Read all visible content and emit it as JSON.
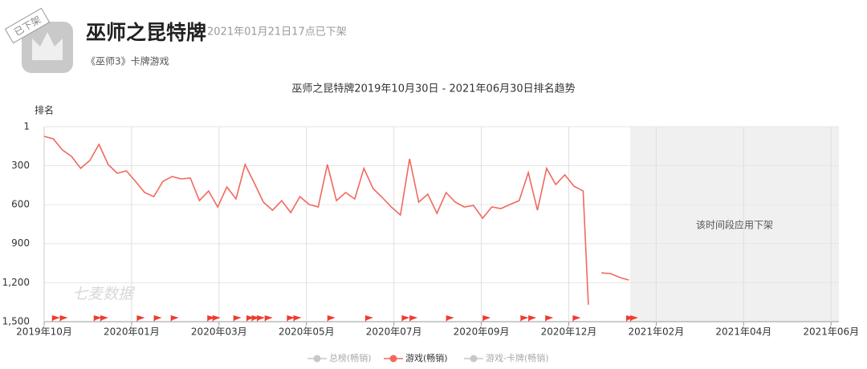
{
  "header": {
    "badge": "已下架",
    "title": "巫师之昆特牌",
    "status": "2021年01月21日17点已下架",
    "subtitle": "《巫师3》卡牌游戏"
  },
  "chart_data": {
    "type": "line",
    "title": "巫师之昆特牌2019年10月30日 - 2021年06月30日排名趋势",
    "y_label": "排名",
    "watermark": "七麦数据",
    "x": [
      "2019-10-30",
      "2019-11-06",
      "2019-11-13",
      "2019-11-20",
      "2019-11-27",
      "2019-12-04",
      "2019-12-11",
      "2019-12-18",
      "2019-12-25",
      "2020-01-01",
      "2020-01-08",
      "2020-01-15",
      "2020-01-22",
      "2020-01-29",
      "2020-02-05",
      "2020-02-12",
      "2020-02-19",
      "2020-02-26",
      "2020-03-04",
      "2020-03-11",
      "2020-03-18",
      "2020-03-25",
      "2020-04-01",
      "2020-04-08",
      "2020-04-15",
      "2020-04-22",
      "2020-04-29",
      "2020-05-06",
      "2020-05-13",
      "2020-05-20",
      "2020-05-27",
      "2020-06-03",
      "2020-06-10",
      "2020-06-17",
      "2020-06-24",
      "2020-07-01",
      "2020-07-08",
      "2020-07-15",
      "2020-07-22",
      "2020-07-29",
      "2020-08-05",
      "2020-08-12",
      "2020-08-19",
      "2020-08-26",
      "2020-09-02",
      "2020-09-09",
      "2020-09-16",
      "2020-09-23",
      "2020-09-30",
      "2020-10-07",
      "2020-10-14",
      "2020-10-21",
      "2020-10-28",
      "2020-11-04",
      "2020-11-11",
      "2020-11-18",
      "2020-11-25",
      "2020-12-02",
      "2020-12-09",
      "2020-12-16",
      "2020-12-20",
      "2020-12-25",
      "2020-12-30",
      "2021-01-06",
      "2021-01-13",
      "2021-01-20"
    ],
    "series": [
      {
        "name": "总榜(畅销)",
        "color": "#c8c8c8",
        "visible": false,
        "values": [
          null,
          null,
          null,
          null,
          null,
          null,
          null,
          null,
          null,
          null,
          null,
          null,
          null,
          null,
          null,
          null,
          null,
          null,
          null,
          null,
          null,
          null,
          null,
          null,
          null,
          null,
          null,
          null,
          null,
          null,
          null,
          null,
          null,
          null,
          null,
          null,
          null,
          null,
          null,
          null,
          null,
          null,
          null,
          null,
          null,
          null,
          null,
          null,
          null,
          null,
          null,
          null,
          null,
          null,
          null,
          null,
          null,
          null,
          null,
          null,
          null,
          null,
          null,
          null,
          null,
          null
        ]
      },
      {
        "name": "游戏(畅销)",
        "color": "#f2685e",
        "visible": true,
        "values": [
          75,
          94,
          180,
          229,
          321,
          260,
          137,
          291,
          359,
          340,
          421,
          507,
          538,
          421,
          384,
          402,
          396,
          569,
          495,
          618,
          464,
          556,
          291,
          433,
          581,
          643,
          569,
          661,
          538,
          599,
          618,
          291,
          569,
          507,
          556,
          321,
          476,
          544,
          618,
          680,
          248,
          581,
          519,
          667,
          507,
          581,
          618,
          606,
          704,
          618,
          630,
          599,
          569,
          353,
          643,
          321,
          445,
          371,
          458,
          495,
          1370,
          null,
          1125,
          1130,
          1160,
          1180
        ]
      },
      {
        "name": "游戏-卡牌(畅销)",
        "color": "#c8c8c8",
        "visible": false,
        "values": [
          null,
          null,
          null,
          null,
          null,
          null,
          null,
          null,
          null,
          null,
          null,
          null,
          null,
          null,
          null,
          null,
          null,
          null,
          null,
          null,
          null,
          null,
          null,
          null,
          null,
          null,
          null,
          null,
          null,
          null,
          null,
          null,
          null,
          null,
          null,
          null,
          null,
          null,
          null,
          null,
          null,
          null,
          null,
          null,
          null,
          null,
          null,
          null,
          null,
          null,
          null,
          null,
          null,
          null,
          null,
          null,
          null,
          null,
          null,
          null,
          null,
          null,
          null,
          null,
          null,
          null
        ]
      }
    ],
    "xlim": [
      "2019-10-30",
      "2021-06-30"
    ],
    "xticks": [
      {
        "value": "2019-10-30",
        "label": "2019年10月"
      },
      {
        "value": "2020-01-05",
        "label": "2020年01月"
      },
      {
        "value": "2020-03-12",
        "label": "2020年03月"
      },
      {
        "value": "2020-05-18",
        "label": "2020年05月"
      },
      {
        "value": "2020-07-24",
        "label": "2020年07月"
      },
      {
        "value": "2020-09-29",
        "label": "2020年09月"
      },
      {
        "value": "2020-12-05",
        "label": "2020年12月"
      },
      {
        "value": "2021-02-10",
        "label": "2021年02月"
      },
      {
        "value": "2021-04-18",
        "label": "2021年04月"
      },
      {
        "value": "2021-06-24",
        "label": "2021年06月"
      }
    ],
    "ylim": [
      1500,
      1
    ],
    "yticks": [
      1,
      300,
      600,
      900,
      {
        "value": 1200,
        "label": "1,200"
      },
      {
        "value": 1500,
        "label": "1,500"
      }
    ],
    "grid": true,
    "offline_region": {
      "start": "2021-01-21",
      "end": "2021-06-30",
      "label": "该时间段应用下架",
      "color": "#f0f0f0"
    },
    "events": [
      "2019-11-05",
      "2019-11-11",
      "2019-12-07",
      "2019-12-12",
      "2020-01-09",
      "2020-01-22",
      "2020-02-04",
      "2020-03-03",
      "2020-03-07",
      "2020-03-23",
      "2020-04-02",
      "2020-04-06",
      "2020-04-10",
      "2020-04-16",
      "2020-05-03",
      "2020-05-08",
      "2020-06-03",
      "2020-07-02",
      "2020-07-30",
      "2020-08-05",
      "2020-09-02",
      "2020-09-30",
      "2020-10-29",
      "2020-11-04",
      "2020-11-17",
      "2020-12-08",
      "2021-01-18",
      "2021-01-21"
    ],
    "event_color": "#f03a2e"
  }
}
